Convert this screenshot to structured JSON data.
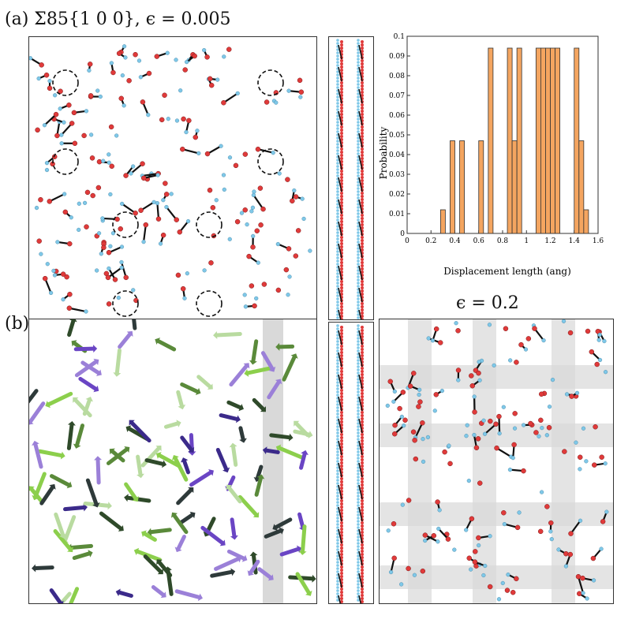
{
  "labels": {
    "panel_a": "(a) Σ85{1 0 0}, ϵ = 0.005",
    "panel_b": "(b)",
    "eps_right": "ϵ = 0.2"
  },
  "colors": {
    "atom_o": "#e03a3a",
    "atom_h": "#7fc8e8",
    "bond": "#111111",
    "bar_fill": "#f4a560",
    "bar_edge": "#333333",
    "shade": "#d9d9d9"
  },
  "chart_data": {
    "type": "bar",
    "title": "",
    "xlabel": "Displacement length (ang)",
    "ylabel": "Probability",
    "xlim": [
      0,
      1.6
    ],
    "ylim": [
      0,
      0.1
    ],
    "xticks": [
      "0",
      "0.2",
      "0.4",
      "0.6",
      "0.8",
      "1",
      "1.2",
      "1.4",
      "1.6"
    ],
    "yticks": [
      "0",
      "0.01",
      "0.02",
      "0.03",
      "0.04",
      "0.05",
      "0.06",
      "0.07",
      "0.08",
      "0.09",
      "0.1"
    ],
    "bin_width": 0.04,
    "x": [
      0.28,
      0.36,
      0.44,
      0.6,
      0.68,
      0.84,
      0.88,
      0.92,
      1.08,
      1.12,
      1.16,
      1.2,
      1.24,
      1.4,
      1.44,
      1.48
    ],
    "values": [
      0.012,
      0.047,
      0.047,
      0.047,
      0.094,
      0.094,
      0.047,
      0.094,
      0.094,
      0.094,
      0.094,
      0.094,
      0.094,
      0.094,
      0.047,
      0.012
    ]
  }
}
